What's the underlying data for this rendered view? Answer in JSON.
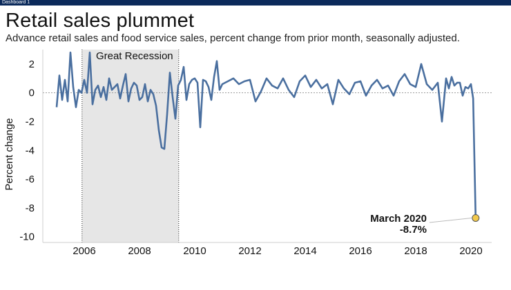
{
  "header": {
    "dashboard_label": "Dashboard 1",
    "title": "Retail sales plummet",
    "subtitle": "Advance retail sales and food service sales, percent change from prior month, seasonally adjusted."
  },
  "colors": {
    "line": "#4a6f9f",
    "recession_fill": "#e6e6e6",
    "highlight_point": "#f2c94c",
    "topbar": "#0b2a5b"
  },
  "chart_data": {
    "type": "line",
    "title": "Retail sales plummet",
    "ylabel": "Percent change",
    "xlabel": "",
    "xlim": [
      2004.5,
      2020.75
    ],
    "ylim": [
      -10.4,
      3.0
    ],
    "x_ticks": [
      "2006",
      "2008",
      "2010",
      "2012",
      "2014",
      "2016",
      "2018",
      "2020"
    ],
    "y_ticks": [
      "2",
      "0",
      "-2",
      "-4",
      "-6",
      "-8",
      "-10"
    ],
    "y_tick_values": [
      2,
      0,
      -2,
      -4,
      -6,
      -8,
      -10
    ],
    "x_tick_values": [
      2006,
      2008,
      2010,
      2012,
      2014,
      2016,
      2018,
      2020
    ],
    "grid": "horizontal-dotted",
    "shaded_region": {
      "label": "Great Recession",
      "start": 2005.92,
      "end": 2009.42
    },
    "annotation": {
      "label": "March 2020",
      "value_label": "-8.7%",
      "x": 2020.17,
      "y": -8.7
    },
    "series": [
      {
        "x": [
          2005.0,
          2005.1,
          2005.2,
          2005.3,
          2005.4,
          2005.5,
          2005.6,
          2005.7,
          2005.8,
          2005.9,
          2006.0,
          2006.1,
          2006.2,
          2006.3,
          2006.4,
          2006.5,
          2006.6,
          2006.7,
          2006.8,
          2006.9,
          2007.0,
          2007.1,
          2007.2,
          2007.3,
          2007.4,
          2007.5,
          2007.6,
          2007.7,
          2007.8,
          2007.9,
          2008.0,
          2008.1,
          2008.2,
          2008.3,
          2008.4,
          2008.5,
          2008.6,
          2008.7,
          2008.8,
          2008.9,
          2009.0,
          2009.1,
          2009.2,
          2009.3,
          2009.4,
          2009.5,
          2009.6,
          2009.7,
          2009.8,
          2009.9,
          2010.0,
          2010.1,
          2010.2,
          2010.3,
          2010.4,
          2010.5,
          2010.6,
          2010.7,
          2010.8,
          2010.9,
          2011.0,
          2011.2,
          2011.4,
          2011.6,
          2011.8,
          2012.0,
          2012.2,
          2012.4,
          2012.6,
          2012.8,
          2013.0,
          2013.2,
          2013.4,
          2013.6,
          2013.8,
          2014.0,
          2014.2,
          2014.4,
          2014.6,
          2014.8,
          2015.0,
          2015.2,
          2015.4,
          2015.6,
          2015.8,
          2016.0,
          2016.2,
          2016.4,
          2016.6,
          2016.8,
          2017.0,
          2017.2,
          2017.4,
          2017.6,
          2017.8,
          2018.0,
          2018.2,
          2018.4,
          2018.6,
          2018.8,
          2018.95,
          2019.1,
          2019.2,
          2019.3,
          2019.4,
          2019.5,
          2019.6,
          2019.7,
          2019.8,
          2019.9,
          2020.0,
          2020.08,
          2020.17
        ],
        "values": [
          -1.0,
          1.2,
          -0.5,
          0.9,
          -0.6,
          2.8,
          0.4,
          -1.0,
          0.2,
          0.0,
          0.9,
          0.0,
          2.8,
          -0.8,
          0.2,
          0.5,
          -0.3,
          0.4,
          -0.5,
          1.0,
          0.2,
          0.4,
          0.6,
          -0.4,
          0.5,
          1.3,
          -0.6,
          0.3,
          0.7,
          0.5,
          -0.5,
          -0.3,
          0.6,
          -0.6,
          0.2,
          -0.1,
          -0.9,
          -2.6,
          -3.8,
          -3.9,
          -1.5,
          1.4,
          -0.3,
          -1.8,
          0.5,
          0.9,
          1.8,
          -0.5,
          0.6,
          0.9,
          1.0,
          0.7,
          -2.4,
          0.9,
          0.8,
          0.4,
          -0.5,
          1.1,
          2.2,
          0.2,
          0.6,
          0.8,
          1.0,
          0.6,
          0.8,
          0.9,
          -0.6,
          0.1,
          1.0,
          0.5,
          0.3,
          1.0,
          0.2,
          -0.3,
          0.8,
          1.2,
          0.4,
          0.9,
          0.3,
          0.6,
          -0.8,
          0.9,
          0.3,
          -0.1,
          0.7,
          0.8,
          -0.2,
          0.5,
          0.9,
          0.3,
          0.5,
          -0.2,
          0.8,
          1.3,
          0.6,
          0.4,
          2.0,
          0.6,
          0.2,
          0.7,
          -2.0,
          1.0,
          0.3,
          1.1,
          0.5,
          0.7,
          0.7,
          -0.2,
          0.4,
          0.3,
          0.6,
          -0.4,
          -8.7
        ]
      }
    ]
  }
}
